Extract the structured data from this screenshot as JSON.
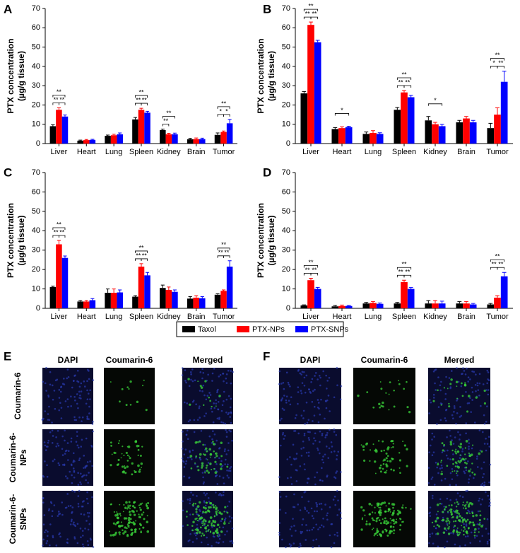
{
  "chart_data": [
    {
      "type": "bar",
      "panel_label": "A",
      "ylabel": [
        "PTX concentration",
        "(µg/g tissue)"
      ],
      "categories": [
        "Liver",
        "Heart",
        "Lung",
        "Spleen",
        "Kidney",
        "Brain",
        "Tumor"
      ],
      "ylim": [
        0,
        70
      ],
      "yticks": [
        0,
        10,
        20,
        30,
        40,
        50,
        60,
        70
      ],
      "series": [
        {
          "name": "Taxol",
          "color": "#000000",
          "values": [
            9,
            1.5,
            4,
            12.5,
            7,
            2.2,
            4.5
          ],
          "errors": [
            0.7,
            0.3,
            0.4,
            1,
            0.5,
            0.5,
            1
          ]
        },
        {
          "name": "PTX-NPs",
          "color": "#ff0000",
          "values": [
            17.5,
            1.8,
            4.3,
            17.5,
            4.8,
            2.3,
            6
          ],
          "errors": [
            1,
            0.3,
            0.5,
            0.8,
            0.5,
            0.6,
            0.5
          ]
        },
        {
          "name": "PTX-SNPs",
          "color": "#0000ff",
          "values": [
            14,
            1.9,
            4.8,
            16,
            4.8,
            2.3,
            10.5
          ],
          "errors": [
            0.8,
            0.3,
            0.7,
            0.7,
            0.6,
            0.5,
            2
          ]
        }
      ],
      "annotations": [
        {
          "category": "Liver",
          "pair": [
            "Taxol",
            "PTX-NPs"
          ],
          "text": "**"
        },
        {
          "category": "Liver",
          "pair": [
            "PTX-NPs",
            "PTX-SNPs"
          ],
          "text": "**"
        },
        {
          "category": "Liver",
          "pair": [
            "Taxol",
            "PTX-SNPs"
          ],
          "text": "**"
        },
        {
          "category": "Spleen",
          "pair": [
            "Taxol",
            "PTX-NPs"
          ],
          "text": "**"
        },
        {
          "category": "Spleen",
          "pair": [
            "PTX-NPs",
            "PTX-SNPs"
          ],
          "text": "**"
        },
        {
          "category": "Spleen",
          "pair": [
            "Taxol",
            "PTX-SNPs"
          ],
          "text": "**"
        },
        {
          "category": "Kidney",
          "pair": [
            "Taxol",
            "PTX-NPs"
          ],
          "text": "**"
        },
        {
          "category": "Kidney",
          "pair": [
            "Taxol",
            "PTX-SNPs"
          ],
          "text": "**"
        },
        {
          "category": "Tumor",
          "pair": [
            "Taxol",
            "PTX-NPs"
          ],
          "text": "*"
        },
        {
          "category": "Tumor",
          "pair": [
            "PTX-NPs",
            "PTX-SNPs"
          ],
          "text": "*"
        },
        {
          "category": "Tumor",
          "pair": [
            "Taxol",
            "PTX-SNPs"
          ],
          "text": "**"
        }
      ]
    },
    {
      "type": "bar",
      "panel_label": "B",
      "ylabel": [
        "PTX concentration",
        "(µg/g tissue)"
      ],
      "categories": [
        "Liver",
        "Heart",
        "Lung",
        "Spleen",
        "Kidney",
        "Brain",
        "Tumor"
      ],
      "ylim": [
        0,
        70
      ],
      "yticks": [
        0,
        10,
        20,
        30,
        40,
        50,
        60,
        70
      ],
      "series": [
        {
          "name": "Taxol",
          "color": "#000000",
          "values": [
            26,
            7.5,
            5,
            17.5,
            12,
            11,
            8
          ],
          "errors": [
            1,
            0.8,
            1,
            1.2,
            2,
            1,
            2.5
          ]
        },
        {
          "name": "PTX-NPs",
          "color": "#ff0000",
          "values": [
            61.5,
            8,
            5.5,
            26.5,
            10,
            13,
            15
          ],
          "errors": [
            1.5,
            0.7,
            1.2,
            1,
            1,
            1,
            3.5
          ]
        },
        {
          "name": "PTX-SNPs",
          "color": "#0000ff",
          "values": [
            52.5,
            8.5,
            5,
            24,
            9,
            11,
            32
          ],
          "errors": [
            1,
            0.5,
            0.6,
            1,
            1,
            1,
            5.5
          ]
        }
      ],
      "annotations": [
        {
          "category": "Liver",
          "pair": [
            "Taxol",
            "PTX-NPs"
          ],
          "text": "**"
        },
        {
          "category": "Liver",
          "pair": [
            "PTX-NPs",
            "PTX-SNPs"
          ],
          "text": "**"
        },
        {
          "category": "Liver",
          "pair": [
            "Taxol",
            "PTX-SNPs"
          ],
          "text": "**"
        },
        {
          "category": "Heart",
          "pair": [
            "Taxol",
            "PTX-SNPs"
          ],
          "text": "*"
        },
        {
          "category": "Spleen",
          "pair": [
            "Taxol",
            "PTX-NPs"
          ],
          "text": "**"
        },
        {
          "category": "Spleen",
          "pair": [
            "PTX-NPs",
            "PTX-SNPs"
          ],
          "text": "**"
        },
        {
          "category": "Spleen",
          "pair": [
            "Taxol",
            "PTX-SNPs"
          ],
          "text": "**"
        },
        {
          "category": "Kidney",
          "pair": [
            "Taxol",
            "PTX-SNPs"
          ],
          "text": "*"
        },
        {
          "category": "Tumor",
          "pair": [
            "Taxol",
            "PTX-NPs"
          ],
          "text": "*"
        },
        {
          "category": "Tumor",
          "pair": [
            "PTX-NPs",
            "PTX-SNPs"
          ],
          "text": "**"
        },
        {
          "category": "Tumor",
          "pair": [
            "Taxol",
            "PTX-SNPs"
          ],
          "text": "**"
        }
      ]
    },
    {
      "type": "bar",
      "panel_label": "C",
      "ylabel": [
        "PTX concentration",
        "(µg/g tissue)"
      ],
      "categories": [
        "Liver",
        "Heart",
        "Lung",
        "Spleen",
        "Kidney",
        "Brain",
        "Tumor"
      ],
      "ylim": [
        0,
        70
      ],
      "yticks": [
        0,
        10,
        20,
        30,
        40,
        50,
        60,
        70
      ],
      "series": [
        {
          "name": "Taxol",
          "color": "#000000",
          "values": [
            11,
            3.5,
            8,
            6,
            10.5,
            5,
            7
          ],
          "errors": [
            0.5,
            0.5,
            2,
            0.5,
            1.5,
            1,
            0.5
          ]
        },
        {
          "name": "PTX-NPs",
          "color": "#ff0000",
          "values": [
            33,
            3.5,
            8,
            21.5,
            9.5,
            5.5,
            9
          ],
          "errors": [
            2,
            0.5,
            2,
            1.5,
            1.5,
            1,
            0.5
          ]
        },
        {
          "name": "PTX-SNPs",
          "color": "#0000ff",
          "values": [
            26,
            4.2,
            8.2,
            17,
            8.5,
            5.2,
            21.5
          ],
          "errors": [
            1,
            0.8,
            1.3,
            1.5,
            1,
            0.8,
            3
          ]
        }
      ],
      "annotations": [
        {
          "category": "Liver",
          "pair": [
            "Taxol",
            "PTX-NPs"
          ],
          "text": "**"
        },
        {
          "category": "Liver",
          "pair": [
            "PTX-NPs",
            "PTX-SNPs"
          ],
          "text": "**"
        },
        {
          "category": "Liver",
          "pair": [
            "Taxol",
            "PTX-SNPs"
          ],
          "text": "**"
        },
        {
          "category": "Spleen",
          "pair": [
            "Taxol",
            "PTX-NPs"
          ],
          "text": "**"
        },
        {
          "category": "Spleen",
          "pair": [
            "PTX-NPs",
            "PTX-SNPs"
          ],
          "text": "**"
        },
        {
          "category": "Spleen",
          "pair": [
            "Taxol",
            "PTX-SNPs"
          ],
          "text": "**"
        },
        {
          "category": "Tumor",
          "pair": [
            "Taxol",
            "PTX-NPs"
          ],
          "text": "**"
        },
        {
          "category": "Tumor",
          "pair": [
            "PTX-NPs",
            "PTX-SNPs"
          ],
          "text": "**"
        },
        {
          "category": "Tumor",
          "pair": [
            "Taxol",
            "PTX-SNPs"
          ],
          "text": "**"
        }
      ]
    },
    {
      "type": "bar",
      "panel_label": "D",
      "ylabel": [
        "PTX concentration",
        "(µg/g tissue)"
      ],
      "categories": [
        "Liver",
        "Heart",
        "Lung",
        "Spleen",
        "Kidney",
        "Brain",
        "Tumor"
      ],
      "ylim": [
        0,
        70
      ],
      "yticks": [
        0,
        10,
        20,
        30,
        40,
        50,
        60,
        70
      ],
      "series": [
        {
          "name": "Taxol",
          "color": "#000000",
          "values": [
            1.5,
            1,
            2.5,
            2.5,
            2.5,
            2.5,
            2
          ],
          "errors": [
            0.3,
            0.5,
            0.5,
            0.5,
            1.5,
            1,
            0.5
          ]
        },
        {
          "name": "PTX-NPs",
          "color": "#ff0000",
          "values": [
            14.5,
            1.2,
            2.8,
            13.5,
            2.5,
            2.5,
            5.5
          ],
          "errors": [
            1,
            0.5,
            0.7,
            1,
            1.5,
            1,
            1
          ]
        },
        {
          "name": "PTX-SNPs",
          "color": "#0000ff",
          "values": [
            10,
            1.2,
            2.3,
            10,
            2.5,
            2,
            16.5
          ],
          "errors": [
            0.8,
            0.3,
            0.5,
            0.7,
            1.2,
            0.5,
            2
          ]
        }
      ],
      "annotations": [
        {
          "category": "Liver",
          "pair": [
            "Taxol",
            "PTX-NPs"
          ],
          "text": "**"
        },
        {
          "category": "Liver",
          "pair": [
            "PTX-NPs",
            "PTX-SNPs"
          ],
          "text": "**"
        },
        {
          "category": "Liver",
          "pair": [
            "Taxol",
            "PTX-SNPs"
          ],
          "text": "**"
        },
        {
          "category": "Spleen",
          "pair": [
            "Taxol",
            "PTX-NPs"
          ],
          "text": "**"
        },
        {
          "category": "Spleen",
          "pair": [
            "PTX-NPs",
            "PTX-SNPs"
          ],
          "text": "**"
        },
        {
          "category": "Spleen",
          "pair": [
            "Taxol",
            "PTX-SNPs"
          ],
          "text": "**"
        },
        {
          "category": "Tumor",
          "pair": [
            "Taxol",
            "PTX-NPs"
          ],
          "text": "**"
        },
        {
          "category": "Tumor",
          "pair": [
            "PTX-NPs",
            "PTX-SNPs"
          ],
          "text": "**"
        },
        {
          "category": "Tumor",
          "pair": [
            "Taxol",
            "PTX-SNPs"
          ],
          "text": "**"
        }
      ]
    }
  ],
  "image_panels": [
    {
      "label": "E",
      "columns": [
        "DAPI",
        "Coumarin-6",
        "Merged"
      ],
      "rows": [
        [
          "Coumarin-6"
        ],
        [
          "Coumarin-6-",
          "NPs"
        ],
        [
          "Coumarin-6-",
          "SNPs"
        ]
      ]
    },
    {
      "label": "F",
      "columns": [
        "DAPI",
        "Coumarin-6",
        "Merged"
      ]
    }
  ]
}
